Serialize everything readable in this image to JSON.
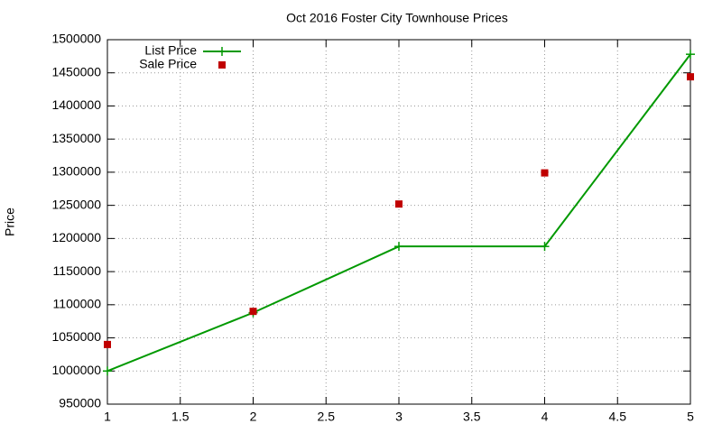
{
  "chart_data": {
    "type": "line",
    "title": "Oct 2016 Foster City Townhouse Prices",
    "y_label": "Price",
    "x": [
      1,
      2,
      3,
      4,
      5
    ],
    "series": [
      {
        "name": "List Price",
        "color": "#009900",
        "style": "linespoints",
        "values": [
          1000000,
          1088000,
          1188000,
          1188000,
          1478000
        ]
      },
      {
        "name": "Sale Price",
        "color": "#c00000",
        "style": "points",
        "values": [
          1040000,
          1090000,
          1252000,
          1299000,
          1444000
        ]
      }
    ],
    "xlim": [
      1,
      5
    ],
    "xticks": [
      1,
      1.5,
      2,
      2.5,
      3,
      3.5,
      4,
      4.5,
      5
    ],
    "ylim": [
      950000,
      1500000
    ],
    "yticks": [
      950000,
      1000000,
      1050000,
      1100000,
      1150000,
      1200000,
      1250000,
      1300000,
      1350000,
      1400000,
      1450000,
      1500000
    ],
    "grid": true,
    "legend": "top-left"
  }
}
